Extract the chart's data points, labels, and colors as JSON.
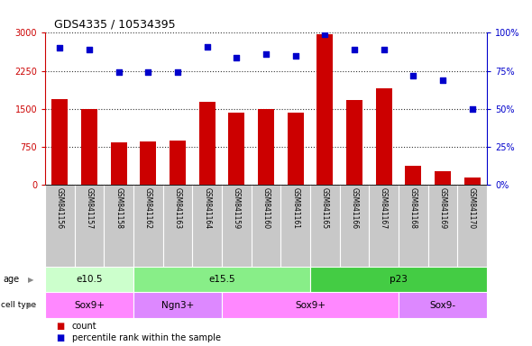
{
  "title": "GDS4335 / 10534395",
  "samples": [
    "GSM841156",
    "GSM841157",
    "GSM841158",
    "GSM841162",
    "GSM841163",
    "GSM841164",
    "GSM841159",
    "GSM841160",
    "GSM841161",
    "GSM841165",
    "GSM841166",
    "GSM841167",
    "GSM841168",
    "GSM841169",
    "GSM841170"
  ],
  "counts": [
    1700,
    1500,
    850,
    860,
    880,
    1650,
    1430,
    1500,
    1420,
    2980,
    1680,
    1900,
    380,
    270,
    150
  ],
  "percentiles": [
    90,
    89,
    74,
    74,
    74,
    91,
    84,
    86,
    85,
    99,
    89,
    89,
    72,
    69,
    50
  ],
  "bar_color": "#cc0000",
  "dot_color": "#0000cc",
  "ylim_left": [
    0,
    3000
  ],
  "ylim_right": [
    0,
    100
  ],
  "yticks_left": [
    0,
    750,
    1500,
    2250,
    3000
  ],
  "ytick_labels_left": [
    "0",
    "750",
    "1500",
    "2250",
    "3000"
  ],
  "yticks_right": [
    0,
    25,
    50,
    75,
    100
  ],
  "ytick_labels_right": [
    "0%",
    "25%",
    "50%",
    "75%",
    "100%"
  ],
  "age_groups": [
    {
      "label": "e10.5",
      "start": 0,
      "end": 3,
      "color": "#ccffcc"
    },
    {
      "label": "e15.5",
      "start": 3,
      "end": 9,
      "color": "#88ee88"
    },
    {
      "label": "p23",
      "start": 9,
      "end": 15,
      "color": "#44cc44"
    }
  ],
  "cell_type_groups": [
    {
      "label": "Sox9+",
      "start": 0,
      "end": 3,
      "color": "#ff88ff"
    },
    {
      "label": "Ngn3+",
      "start": 3,
      "end": 6,
      "color": "#dd88ff"
    },
    {
      "label": "Sox9+",
      "start": 6,
      "end": 12,
      "color": "#ff88ff"
    },
    {
      "label": "Sox9-",
      "start": 12,
      "end": 15,
      "color": "#dd88ff"
    }
  ],
  "bar_color_hex": "#cc0000",
  "dot_color_hex": "#0000cc",
  "bg_color": "#ffffff",
  "tick_area_color": "#c8c8c8",
  "grid_color": "#333333"
}
